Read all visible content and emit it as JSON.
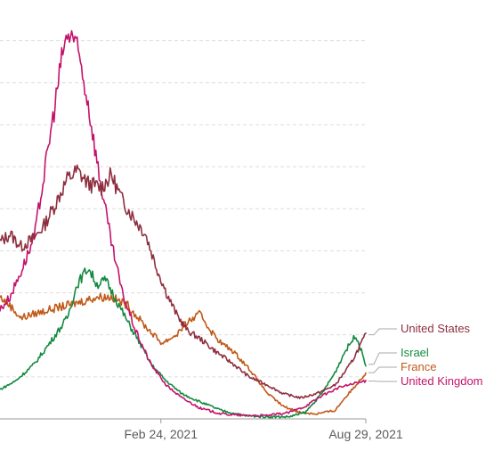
{
  "chart_data": {
    "type": "line",
    "title": "",
    "xlabel": "",
    "ylabel": "",
    "x_ticks": [
      {
        "date": "2021-02-24",
        "label": "Feb 24, 2021"
      },
      {
        "date": "2021-08-29",
        "label": "Aug 29, 2021"
      }
    ],
    "x_range": [
      "2020-10-01",
      "2021-08-29"
    ],
    "y_range": [
      0,
      9.5
    ],
    "y_gridlines": [
      1,
      2,
      3,
      4,
      5,
      6,
      7,
      8,
      9
    ],
    "grid": true,
    "legend": "right, labels at line ends",
    "series": [
      {
        "name": "United States",
        "color": "#8e2f3f",
        "points": [
          [
            "2020-10-01",
            4.2
          ],
          [
            "2020-10-10",
            4.4
          ],
          [
            "2020-10-20",
            4.1
          ],
          [
            "2020-11-01",
            4.3
          ],
          [
            "2020-11-10",
            4.6
          ],
          [
            "2020-11-20",
            5.1
          ],
          [
            "2020-12-01",
            5.7
          ],
          [
            "2020-12-10",
            5.9
          ],
          [
            "2020-12-20",
            5.6
          ],
          [
            "2021-01-01",
            5.5
          ],
          [
            "2021-01-10",
            5.8
          ],
          [
            "2021-01-20",
            5.2
          ],
          [
            "2021-01-30",
            4.8
          ],
          [
            "2021-02-10",
            4.4
          ],
          [
            "2021-02-20",
            3.6
          ],
          [
            "2021-03-01",
            3.0
          ],
          [
            "2021-03-10",
            2.5
          ],
          [
            "2021-03-20",
            2.1
          ],
          [
            "2021-04-01",
            1.9
          ],
          [
            "2021-04-15",
            1.6
          ],
          [
            "2021-05-01",
            1.3
          ],
          [
            "2021-05-15",
            1.0
          ],
          [
            "2021-06-01",
            0.8
          ],
          [
            "2021-06-15",
            0.6
          ],
          [
            "2021-07-01",
            0.5
          ],
          [
            "2021-07-15",
            0.6
          ],
          [
            "2021-08-01",
            0.8
          ],
          [
            "2021-08-15",
            1.3
          ],
          [
            "2021-08-29",
            2.0
          ]
        ]
      },
      {
        "name": "Israel",
        "color": "#138a3f",
        "points": [
          [
            "2020-10-01",
            0.7
          ],
          [
            "2020-10-15",
            0.9
          ],
          [
            "2020-11-01",
            1.3
          ],
          [
            "2020-11-15",
            1.8
          ],
          [
            "2020-12-01",
            2.4
          ],
          [
            "2020-12-10",
            3.2
          ],
          [
            "2020-12-20",
            3.6
          ],
          [
            "2020-12-28",
            3.2
          ],
          [
            "2021-01-05",
            3.3
          ],
          [
            "2021-01-15",
            2.8
          ],
          [
            "2021-01-25",
            2.3
          ],
          [
            "2021-02-05",
            1.8
          ],
          [
            "2021-02-15",
            1.3
          ],
          [
            "2021-03-01",
            0.9
          ],
          [
            "2021-03-15",
            0.6
          ],
          [
            "2021-04-01",
            0.4
          ],
          [
            "2021-04-20",
            0.2
          ],
          [
            "2021-05-10",
            0.08
          ],
          [
            "2021-06-01",
            0.05
          ],
          [
            "2021-06-20",
            0.05
          ],
          [
            "2021-07-05",
            0.15
          ],
          [
            "2021-07-20",
            0.6
          ],
          [
            "2021-08-01",
            1.1
          ],
          [
            "2021-08-10",
            1.6
          ],
          [
            "2021-08-20",
            2.0
          ],
          [
            "2021-08-29",
            1.3
          ]
        ]
      },
      {
        "name": "France",
        "color": "#c05917",
        "points": [
          [
            "2020-10-01",
            2.9
          ],
          [
            "2020-10-10",
            2.7
          ],
          [
            "2020-10-20",
            2.4
          ],
          [
            "2020-11-01",
            2.5
          ],
          [
            "2020-11-15",
            2.6
          ],
          [
            "2020-12-01",
            2.7
          ],
          [
            "2020-12-15",
            2.8
          ],
          [
            "2020-12-28",
            2.9
          ],
          [
            "2021-01-10",
            2.9
          ],
          [
            "2021-01-25",
            2.7
          ],
          [
            "2021-02-10",
            2.2
          ],
          [
            "2021-02-25",
            1.8
          ],
          [
            "2021-03-10",
            2.0
          ],
          [
            "2021-03-20",
            2.3
          ],
          [
            "2021-04-01",
            2.5
          ],
          [
            "2021-04-10",
            2.1
          ],
          [
            "2021-04-20",
            1.8
          ],
          [
            "2021-05-01",
            1.6
          ],
          [
            "2021-05-15",
            1.2
          ],
          [
            "2021-06-01",
            0.6
          ],
          [
            "2021-06-15",
            0.3
          ],
          [
            "2021-07-01",
            0.15
          ],
          [
            "2021-07-15",
            0.12
          ],
          [
            "2021-08-01",
            0.2
          ],
          [
            "2021-08-10",
            0.5
          ],
          [
            "2021-08-20",
            0.8
          ],
          [
            "2021-08-29",
            1.1
          ]
        ]
      },
      {
        "name": "United Kingdom",
        "color": "#c4136b",
        "points": [
          [
            "2020-10-01",
            2.6
          ],
          [
            "2020-10-10",
            2.9
          ],
          [
            "2020-10-20",
            3.5
          ],
          [
            "2020-11-01",
            4.3
          ],
          [
            "2020-11-10",
            5.8
          ],
          [
            "2020-11-20",
            7.5
          ],
          [
            "2020-11-28",
            8.9
          ],
          [
            "2020-12-05",
            9.2
          ],
          [
            "2020-12-12",
            8.6
          ],
          [
            "2020-12-20",
            7.5
          ],
          [
            "2020-12-30",
            5.8
          ],
          [
            "2021-01-10",
            4.2
          ],
          [
            "2021-01-20",
            3.0
          ],
          [
            "2021-02-01",
            2.1
          ],
          [
            "2021-02-15",
            1.3
          ],
          [
            "2021-03-01",
            0.8
          ],
          [
            "2021-03-15",
            0.5
          ],
          [
            "2021-04-01",
            0.25
          ],
          [
            "2021-04-20",
            0.12
          ],
          [
            "2021-05-10",
            0.08
          ],
          [
            "2021-06-01",
            0.08
          ],
          [
            "2021-06-20",
            0.15
          ],
          [
            "2021-07-05",
            0.3
          ],
          [
            "2021-07-20",
            0.55
          ],
          [
            "2021-08-05",
            0.75
          ],
          [
            "2021-08-20",
            0.85
          ],
          [
            "2021-08-29",
            0.9
          ]
        ]
      }
    ]
  }
}
